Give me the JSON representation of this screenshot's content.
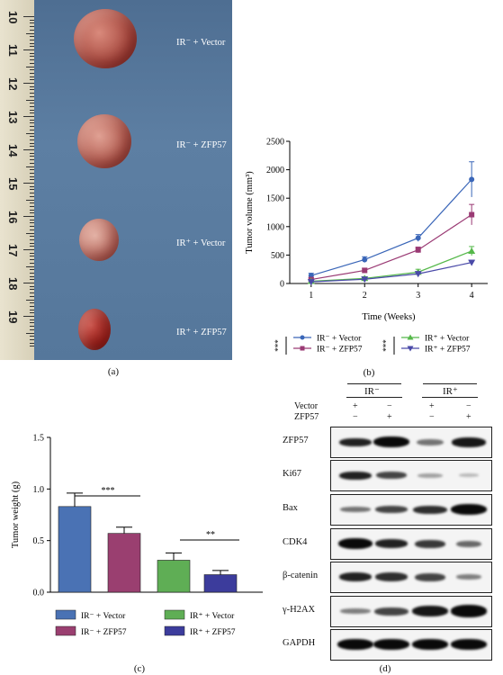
{
  "panel_a": {
    "label": "(a)",
    "groups": [
      "IR⁻ + Vector",
      "IR⁻ + ZFP57",
      "IR⁺ + Vector",
      "IR⁺ + ZFP57"
    ],
    "ruler_marks": [
      "10",
      "11",
      "12",
      "13",
      "14",
      "15",
      "16",
      "17",
      "18",
      "19"
    ]
  },
  "panel_b": {
    "label": "(b)",
    "legend_sig_left": "***",
    "legend_sig_right": "***"
  },
  "panel_c": {
    "label": "(c)",
    "sig_1": "***",
    "sig_2": "**"
  },
  "panel_d": {
    "label": "(d)",
    "header_ir_minus": "IR⁻",
    "header_ir_plus": "IR⁺",
    "row_vector": "Vector",
    "row_zfp57": "ZFP57",
    "vector_signs": [
      "+",
      "−",
      "+",
      "−"
    ],
    "zfp57_signs": [
      "−",
      "+",
      "−",
      "+"
    ],
    "proteins": [
      "ZFP57",
      "Ki67",
      "Bax",
      "CDK4",
      "β-catenin",
      "γ-H2AX",
      "GAPDH"
    ]
  },
  "chart_data": [
    {
      "type": "line",
      "xlabel": "Time (Weeks)",
      "ylabel": "Tumor volume (mm³)",
      "x": [
        1,
        2,
        3,
        4
      ],
      "xlim": [
        0.6,
        4.3
      ],
      "ylim": [
        0,
        2500
      ],
      "yticks": [
        0,
        500,
        1000,
        1500,
        2000,
        2500
      ],
      "legend": "bottom",
      "series": [
        {
          "name": "IR⁻ + Vector",
          "color": "#3a66b8",
          "marker": "circle",
          "values": [
            140,
            420,
            800,
            1830
          ],
          "err": [
            40,
            50,
            60,
            310
          ]
        },
        {
          "name": "IR⁻ + ZFP57",
          "color": "#9a3a74",
          "marker": "square",
          "values": [
            70,
            230,
            590,
            1210
          ],
          "err": [
            30,
            40,
            50,
            180
          ]
        },
        {
          "name": "IR⁺ + Vector",
          "color": "#55b84a",
          "marker": "triangle-up",
          "values": [
            40,
            90,
            200,
            570
          ],
          "err": [
            20,
            30,
            50,
            80
          ]
        },
        {
          "name": "IR⁺ + ZFP57",
          "color": "#4a4aa8",
          "marker": "triangle-down",
          "values": [
            30,
            75,
            170,
            370
          ],
          "err": [
            15,
            25,
            40,
            40
          ]
        }
      ]
    },
    {
      "type": "bar",
      "ylabel": "Tumor weight (g)",
      "categories": [
        "IR⁻ + Vector",
        "IR⁻ + ZFP57",
        "IR⁺ + Vector",
        "IR⁺ + ZFP57"
      ],
      "values": [
        0.83,
        0.57,
        0.31,
        0.17
      ],
      "err": [
        0.13,
        0.06,
        0.07,
        0.04
      ],
      "colors": [
        "#4a72b4",
        "#9a3f70",
        "#5fae55",
        "#3c3c9c"
      ],
      "ylim": [
        0,
        1.5
      ],
      "yticks": [
        "0.0",
        "0.5",
        "1.0",
        "1.5"
      ],
      "legend": "bottom"
    }
  ]
}
